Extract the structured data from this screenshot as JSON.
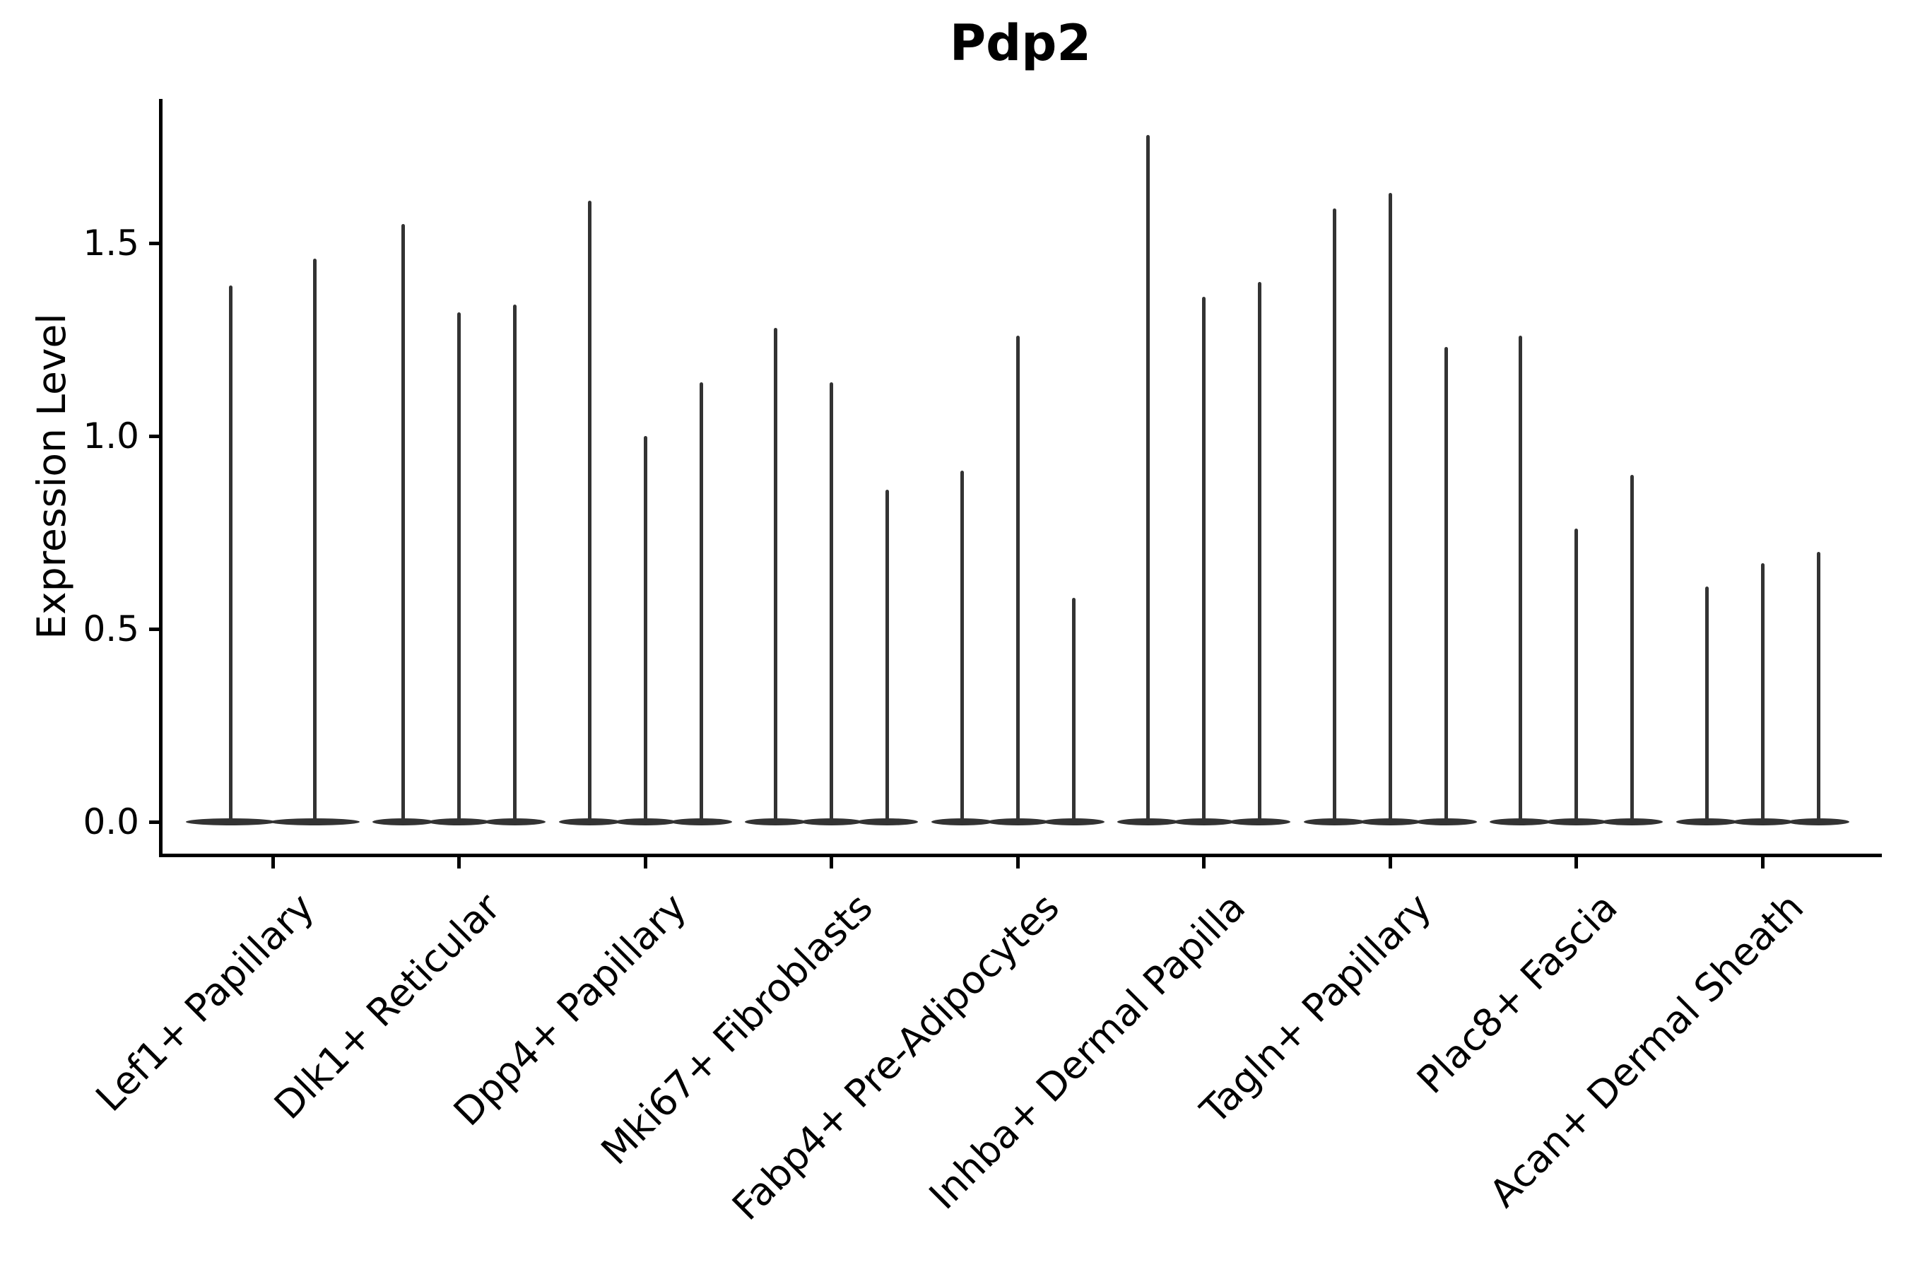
{
  "chart_data": {
    "type": "violin",
    "title": "Pdp2",
    "ylabel": "Expression Level",
    "xlabel": "",
    "categories": [
      "Lef1+ Papillary",
      "Dlk1+ Reticular",
      "Dpp4+ Papillary",
      "Mki67+ Fibroblasts",
      "Fabp4+ Pre-Adipocytes",
      "Inhba+ Dermal Papilla",
      "Tagln+ Papillary",
      "Plac8+ Fascia",
      "Acan+ Dermal Sheath"
    ],
    "series": [
      {
        "category": "Lef1+ Papillary",
        "spike_maxima": [
          1.39,
          1.46
        ]
      },
      {
        "category": "Dlk1+ Reticular",
        "spike_maxima": [
          1.55,
          1.32,
          1.34
        ]
      },
      {
        "category": "Dpp4+ Papillary",
        "spike_maxima": [
          1.61,
          1.0,
          1.14
        ]
      },
      {
        "category": "Mki67+ Fibroblasts",
        "spike_maxima": [
          1.28,
          1.14,
          0.86
        ]
      },
      {
        "category": "Fabp4+ Pre-Adipocytes",
        "spike_maxima": [
          0.91,
          1.26,
          0.58
        ]
      },
      {
        "category": "Inhba+ Dermal Papilla",
        "spike_maxima": [
          1.78,
          1.36,
          1.4
        ]
      },
      {
        "category": "Tagln+ Papillary",
        "spike_maxima": [
          1.59,
          1.63,
          1.23
        ]
      },
      {
        "category": "Plac8+ Fascia",
        "spike_maxima": [
          1.26,
          0.76,
          0.9
        ]
      },
      {
        "category": "Acan+ Dermal Sheath",
        "spike_maxima": [
          0.61,
          0.67,
          0.7
        ]
      }
    ],
    "ytick_values": [
      0.0,
      0.5,
      1.0,
      1.5
    ],
    "ytick_labels": [
      "0.0",
      "0.5",
      "1.0",
      "1.5"
    ],
    "ylim": [
      -0.08,
      1.87
    ],
    "grid": false,
    "legend": "none",
    "description": "Violin plot of Pdp2 expression per fibroblast subtype; each category holds 2-3 extremely thin violins whose mass sits at 0 expression (flat lens at baseline) with a thin tail spike reaching the listed maximum."
  },
  "colors": {
    "violin": "#333333",
    "axis": "#000000",
    "text": "#000000",
    "background": "#ffffff"
  }
}
